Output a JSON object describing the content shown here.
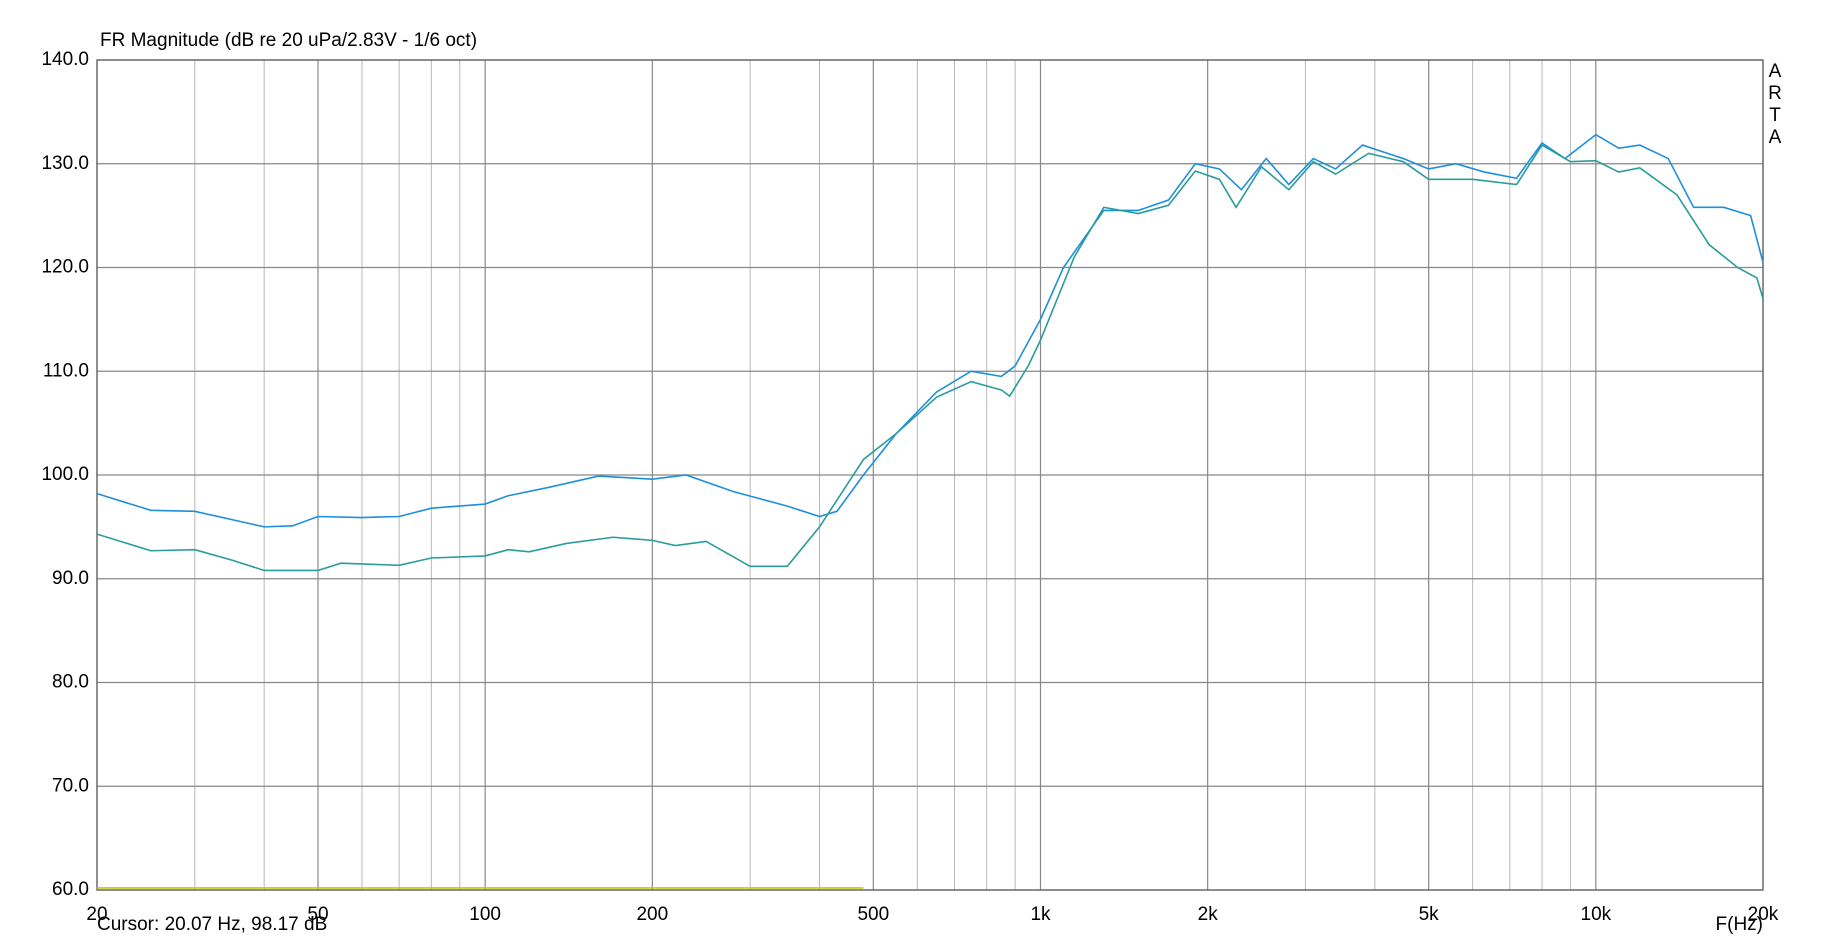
{
  "chart_data": {
    "type": "line",
    "title": "FR Magnitude (dB re 20 uPa/2.83V - 1/6 oct)",
    "side_label": "ARTA",
    "cursor": "Cursor: 20.07 Hz, 98.17 dB",
    "xlabel": "F(Hz)",
    "xscale": "log",
    "grid": true,
    "xlim": [
      20,
      20000
    ],
    "ylim": [
      60,
      140
    ],
    "xticks": [
      20,
      50,
      100,
      200,
      500,
      {
        "value": 1000,
        "label": "1k"
      },
      {
        "value": 2000,
        "label": "2k"
      },
      {
        "value": 5000,
        "label": "5k"
      },
      {
        "value": 10000,
        "label": "10k"
      },
      {
        "value": 20000,
        "label": "20k"
      }
    ],
    "minor_xticks": [
      30,
      40,
      60,
      70,
      80,
      90,
      300,
      400,
      600,
      700,
      800,
      900,
      3000,
      4000,
      6000,
      7000,
      8000,
      9000
    ],
    "yticks": [
      {
        "value": 60,
        "label": "60.0"
      },
      {
        "value": 70,
        "label": "70.0"
      },
      {
        "value": 80,
        "label": "80.0"
      },
      {
        "value": 90,
        "label": "90.0"
      },
      {
        "value": 100,
        "label": "100.0"
      },
      {
        "value": 110,
        "label": "110.0"
      },
      {
        "value": 120,
        "label": "120.0"
      },
      {
        "value": 130,
        "label": "130.0"
      },
      {
        "value": 140,
        "label": "140.0"
      }
    ],
    "series": [
      {
        "color": "#1e8fdc",
        "x": [
          20,
          25,
          30,
          35,
          40,
          45,
          50,
          60,
          70,
          80,
          100,
          110,
          130,
          160,
          200,
          230,
          280,
          350,
          400,
          430,
          480,
          550,
          650,
          750,
          850,
          900,
          1000,
          1100,
          1300,
          1500,
          1700,
          1900,
          2100,
          2300,
          2550,
          2800,
          3100,
          3400,
          3800,
          4500,
          5000,
          5600,
          6300,
          7200,
          8000,
          8800,
          10000,
          11000,
          12000,
          13500,
          15000,
          17000,
          19000,
          20000
        ],
        "values": [
          98.2,
          96.6,
          96.5,
          95.7,
          95.0,
          95.1,
          96.0,
          95.9,
          96.0,
          96.8,
          97.2,
          98.0,
          98.8,
          99.9,
          99.6,
          100.0,
          98.4,
          97.0,
          96.0,
          96.5,
          100,
          104,
          108,
          110,
          109.5,
          110.5,
          115,
          120,
          125.5,
          125.5,
          126.5,
          130,
          129.5,
          127.5,
          130.5,
          128,
          130.5,
          129.5,
          131.8,
          130.5,
          129.5,
          130,
          129.2,
          128.6,
          132,
          130.5,
          132.8,
          131.5,
          131.8,
          130.5,
          125.8,
          125.8,
          125,
          120.5
        ]
      },
      {
        "color": "#2a9c9c",
        "x": [
          20,
          25,
          30,
          35,
          40,
          50,
          55,
          70,
          80,
          100,
          110,
          120,
          140,
          170,
          200,
          220,
          250,
          300,
          350,
          400,
          480,
          550,
          650,
          750,
          850,
          880,
          950,
          1000,
          1150,
          1300,
          1500,
          1700,
          1900,
          2100,
          2250,
          2500,
          2800,
          3100,
          3400,
          3900,
          4500,
          5000,
          6000,
          7200,
          8000,
          9000,
          10000,
          11000,
          12000,
          14000,
          16000,
          18000,
          19500,
          20000
        ],
        "values": [
          94.3,
          92.7,
          92.8,
          91.8,
          90.8,
          90.8,
          91.5,
          91.3,
          92.0,
          92.2,
          92.8,
          92.6,
          93.4,
          94.0,
          93.7,
          93.2,
          93.6,
          91.2,
          91.2,
          95,
          101.5,
          104,
          107.5,
          109,
          108.2,
          107.6,
          110.5,
          113,
          121,
          125.8,
          125.2,
          126,
          129.3,
          128.5,
          125.8,
          129.7,
          127.5,
          130.2,
          129,
          131,
          130.2,
          128.5,
          128.5,
          128,
          131.8,
          130.2,
          130.3,
          129.2,
          129.6,
          127,
          122.2,
          120,
          119,
          117
        ]
      },
      {
        "color": "#c8c800",
        "x": [
          20,
          480
        ],
        "values": [
          60.2,
          60.2
        ]
      }
    ]
  }
}
